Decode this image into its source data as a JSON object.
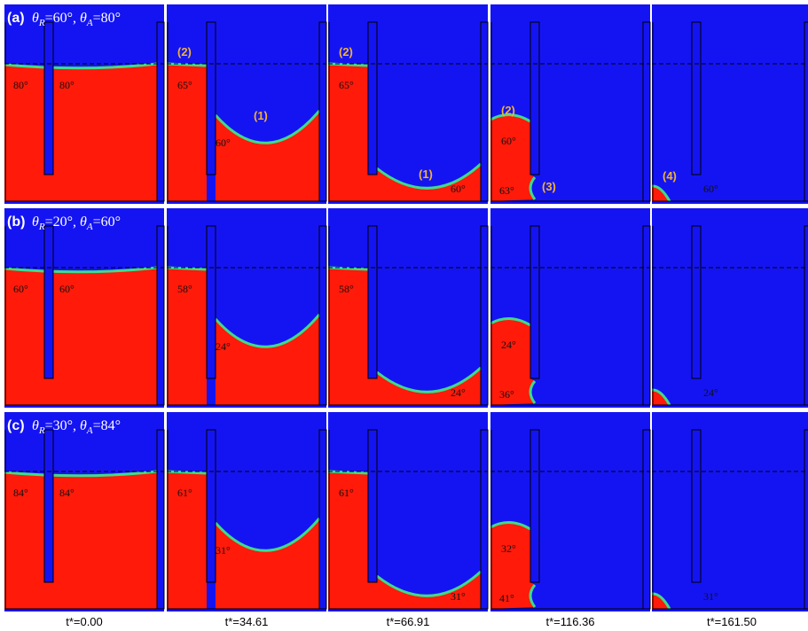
{
  "rows": [
    {
      "label": "(a)",
      "condition": [
        [
          "θ",
          "R",
          "=60°, "
        ],
        [
          "θ",
          "A",
          "=80°"
        ]
      ],
      "panels": [
        {
          "angles": [
            "80°",
            "80°"
          ],
          "markers": []
        },
        {
          "angles": [
            "65°",
            "60°"
          ],
          "markers": [
            "(2)",
            "(1)"
          ]
        },
        {
          "angles": [
            "65°",
            "60°"
          ],
          "markers": [
            "(2)",
            "(1)"
          ]
        },
        {
          "angles": [
            "60°",
            "63°"
          ],
          "markers": [
            "(2)",
            "(3)"
          ]
        },
        {
          "angles": [
            "60°"
          ],
          "markers": [
            "(4)"
          ]
        }
      ]
    },
    {
      "label": "(b)",
      "condition": [
        [
          "θ",
          "R",
          "=20°, "
        ],
        [
          "θ",
          "A",
          "=60°"
        ]
      ],
      "panels": [
        {
          "angles": [
            "60°",
            "60°"
          ],
          "markers": []
        },
        {
          "angles": [
            "58°",
            "24°"
          ],
          "markers": []
        },
        {
          "angles": [
            "58°",
            "24°"
          ],
          "markers": []
        },
        {
          "angles": [
            "24°",
            "36°"
          ],
          "markers": []
        },
        {
          "angles": [
            "24°"
          ],
          "markers": []
        }
      ]
    },
    {
      "label": "(c)",
      "condition": [
        [
          "θ",
          "R",
          "=30°, "
        ],
        [
          "θ",
          "A",
          "=84°"
        ]
      ],
      "panels": [
        {
          "angles": [
            "84°",
            "84°"
          ],
          "markers": []
        },
        {
          "angles": [
            "61°",
            "31°"
          ],
          "markers": []
        },
        {
          "angles": [
            "61°",
            "31°"
          ],
          "markers": []
        },
        {
          "angles": [
            "32°",
            "41°"
          ],
          "markers": []
        },
        {
          "angles": [
            "31°"
          ],
          "markers": []
        }
      ]
    }
  ],
  "time_labels": [
    "t*=0.00",
    "t*=34.61",
    "t*=66.91",
    "t*=116.36",
    "t*=161.50"
  ]
}
